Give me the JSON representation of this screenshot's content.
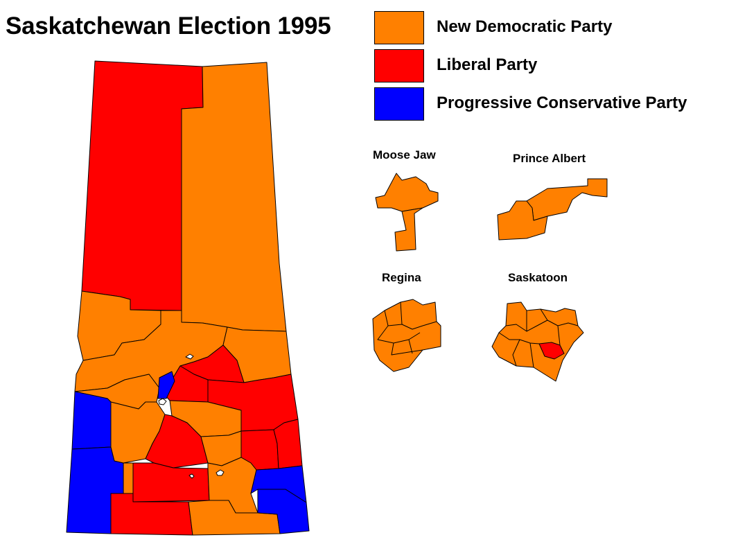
{
  "title": "Saskatchewan Election 1995",
  "colors": {
    "ndp": "#ff8000",
    "liberal": "#ff0000",
    "pc": "#0000ff"
  },
  "legend": [
    {
      "label": "New Democratic Party",
      "party": "ndp"
    },
    {
      "label": "Liberal Party",
      "party": "liberal"
    },
    {
      "label": "Progressive Conservative Party",
      "party": "pc"
    }
  ],
  "insets": {
    "moose_jaw": "Moose Jaw",
    "prince_albert": "Prince Albert",
    "regina": "Regina",
    "saskatoon": "Saskatoon"
  }
}
